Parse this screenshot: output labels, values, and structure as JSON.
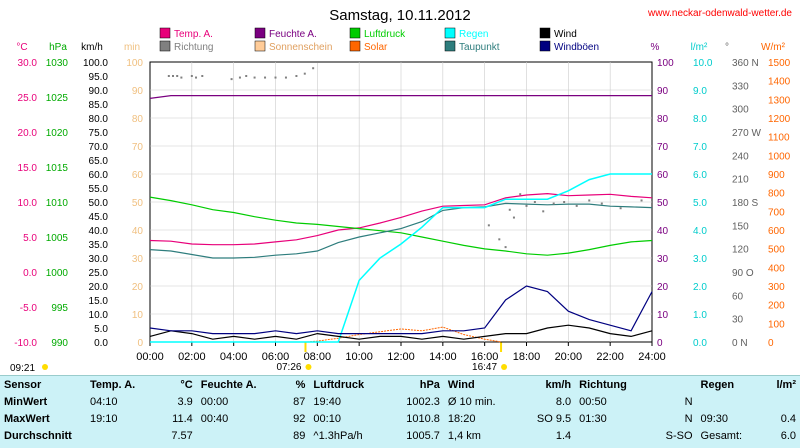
{
  "title": "Samstag, 10.11.2012",
  "site": "www.neckar-odenwald-wetter.de",
  "legend": [
    {
      "label": "Temp. A.",
      "color": "#e8007a"
    },
    {
      "label": "Feuchte A.",
      "color": "#7a0080"
    },
    {
      "label": "Luftdruck",
      "color": "#00cc00"
    },
    {
      "label": "Regen",
      "color": "#00ffff"
    },
    {
      "label": "Wind",
      "color": "#000000"
    },
    {
      "label": "Richtung",
      "color": "#808080"
    },
    {
      "label": "Sonnenschein",
      "color": "#ffcc99"
    },
    {
      "label": "Solar",
      "color": "#ff6600"
    },
    {
      "label": "Taupunkt",
      "color": "#2e7d7d"
    },
    {
      "label": "Windböen",
      "color": "#000080"
    }
  ],
  "axis_units": {
    "temp": "°C",
    "pressure": "hPa",
    "wind": "km/h",
    "sun": "min",
    "humidity": "%",
    "rain": "l/m²",
    "direction": "°",
    "solar": "W/m²"
  },
  "axis_ticks": {
    "temp": [
      "30.0",
      "25.0",
      "20.0",
      "15.0",
      "10.0",
      "5.0",
      "0.0",
      "-5.0",
      "-10.0"
    ],
    "pressure": [
      "1030",
      "1025",
      "1020",
      "1015",
      "1010",
      "1005",
      "1000",
      "995",
      "990"
    ],
    "wind": [
      "100.0",
      "95.0",
      "90.0",
      "85.0",
      "80.0",
      "75.0",
      "70.0",
      "65.0",
      "60.0",
      "55.0",
      "50.0",
      "45.0",
      "40.0",
      "35.0",
      "30.0",
      "25.0",
      "20.0",
      "15.0",
      "10.0",
      "5.0",
      "0.0"
    ],
    "sun": [
      "100",
      "90",
      "80",
      "70",
      "60",
      "50",
      "40",
      "30",
      "20",
      "10",
      "0"
    ],
    "humidity": [
      "100",
      "90",
      "80",
      "70",
      "60",
      "50",
      "40",
      "30",
      "20",
      "10",
      "0"
    ],
    "rain": [
      "10.0",
      "9.0",
      "8.0",
      "7.0",
      "6.0",
      "5.0",
      "4.0",
      "3.0",
      "2.0",
      "1.0",
      "0.0"
    ],
    "direction": [
      "360 N",
      "330",
      "300",
      "270 W",
      "240",
      "210",
      "180 S",
      "150",
      "120",
      "90 O",
      "60",
      "30",
      "0 N"
    ],
    "solar": [
      "1500",
      "1400",
      "1300",
      "1200",
      "1100",
      "1000",
      "900",
      "800",
      "700",
      "600",
      "500",
      "400",
      "300",
      "200",
      "100",
      "0"
    ],
    "time": [
      "00:00",
      "02:00",
      "04:00",
      "06:00",
      "08:00",
      "10:00",
      "12:00",
      "14:00",
      "16:00",
      "18:00",
      "20:00",
      "22:00",
      "24:00"
    ]
  },
  "sun_events": {
    "sunrise": "07:26",
    "sunset": "16:47",
    "daylight": "09:21"
  },
  "chart_data": {
    "type": "line",
    "title": "Samstag, 10.11.2012",
    "x_unit": "hours",
    "x": [
      0,
      1,
      2,
      3,
      4,
      5,
      6,
      7,
      8,
      9,
      10,
      11,
      12,
      13,
      14,
      15,
      16,
      17,
      18,
      19,
      20,
      21,
      22,
      23,
      24
    ],
    "series": [
      {
        "name": "Temp. A.",
        "axis": "temp",
        "ylim": [
          -10,
          30
        ],
        "values": [
          4.5,
          4.4,
          4.0,
          3.9,
          3.9,
          4.0,
          4.3,
          4.6,
          5.2,
          6.0,
          6.3,
          7.0,
          7.8,
          8.7,
          9.4,
          9.5,
          9.6,
          10.6,
          11.0,
          11.2,
          10.9,
          11.0,
          11.1,
          10.8,
          10.6
        ]
      },
      {
        "name": "Feuchte A.",
        "axis": "humidity",
        "ylim": [
          0,
          100
        ],
        "values": [
          87,
          88,
          88,
          88,
          88,
          88,
          88,
          88,
          88,
          88,
          88,
          88,
          88,
          88,
          88,
          88,
          88,
          88,
          88,
          88,
          88,
          88,
          88,
          88,
          88
        ]
      },
      {
        "name": "Luftdruck",
        "axis": "pressure",
        "ylim": [
          990,
          1030
        ],
        "values": [
          1010.7,
          1010.2,
          1009.6,
          1008.9,
          1008.5,
          1007.9,
          1007.4,
          1007.0,
          1006.8,
          1006.5,
          1006.2,
          1005.9,
          1005.6,
          1005.0,
          1004.4,
          1003.8,
          1003.3,
          1003.0,
          1002.6,
          1002.4,
          1002.7,
          1003.2,
          1003.8,
          1004.3,
          1004.5
        ]
      },
      {
        "name": "Taupunkt",
        "axis": "temp",
        "ylim": [
          -10,
          30
        ],
        "values": [
          3.2,
          3.0,
          2.5,
          2.0,
          2.0,
          2.1,
          2.4,
          2.6,
          3.0,
          4.2,
          5.0,
          5.6,
          6.2,
          7.2,
          8.8,
          9.2,
          9.3,
          9.8,
          9.7,
          9.6,
          9.7,
          9.7,
          9.4,
          9.3,
          9.2
        ]
      },
      {
        "name": "Regen",
        "axis": "rain",
        "ylim": [
          0,
          10
        ],
        "values": [
          0,
          0,
          0,
          0,
          0,
          0,
          0,
          0,
          0,
          0,
          2.2,
          3.0,
          3.5,
          4.1,
          4.8,
          4.8,
          4.8,
          5.1,
          5.1,
          5.1,
          5.4,
          5.8,
          6.0,
          6.0,
          6.0
        ]
      },
      {
        "name": "Wind",
        "axis": "wind",
        "ylim": [
          0,
          100
        ],
        "values": [
          2,
          4,
          3,
          1,
          2,
          1,
          2,
          1,
          3,
          2,
          1,
          2,
          2,
          1,
          2,
          1,
          2,
          3,
          3,
          5,
          6,
          5,
          3,
          2,
          4
        ]
      },
      {
        "name": "Windböen",
        "axis": "wind",
        "ylim": [
          0,
          100
        ],
        "values": [
          5,
          4,
          4,
          3,
          3,
          3,
          4,
          3,
          4,
          3,
          3,
          3,
          3,
          3,
          4,
          4,
          5,
          15,
          20,
          18,
          11,
          8,
          6,
          4,
          18
        ]
      }
    ],
    "scatter_series": [
      {
        "name": "Richtung",
        "axis": "direction",
        "ylim": [
          0,
          360
        ],
        "x": [
          0.9,
          1.1,
          1.3,
          1.5,
          2.0,
          2.2,
          2.5,
          3.9,
          4.3,
          4.6,
          5.0,
          5.5,
          6.0,
          6.5,
          7.0,
          7.4,
          7.8,
          8.0,
          16.2,
          16.7,
          17.0,
          17.2,
          17.4,
          17.7,
          18.0,
          18.4,
          18.8,
          19.3,
          19.8,
          20.4,
          21.0,
          21.6,
          22.5,
          23.5
        ],
        "y": [
          342,
          342,
          342,
          340,
          342,
          340,
          342,
          338,
          340,
          342,
          340,
          340,
          340,
          340,
          342,
          345,
          352,
          360,
          150,
          132,
          122,
          170,
          160,
          190,
          175,
          180,
          168,
          178,
          180,
          175,
          182,
          178,
          172,
          182
        ]
      },
      {
        "name": "Sonnenschein",
        "axis": "sun",
        "ylim": [
          0,
          100
        ],
        "x": [],
        "y": []
      }
    ],
    "solar_series": {
      "name": "Solar",
      "axis": "solar",
      "ylim": [
        0,
        1500
      ],
      "x": [
        7.5,
        8,
        9,
        10,
        11,
        12,
        13,
        14,
        15,
        16,
        16.8
      ],
      "y": [
        0,
        5,
        20,
        40,
        55,
        70,
        60,
        80,
        40,
        15,
        0
      ]
    },
    "summary": {
      "rows": [
        "MinWert",
        "MaxWert",
        "Durchschnitt"
      ]
    }
  },
  "stats": {
    "header": [
      "Sensor",
      "Temp. A.",
      "°C",
      "Feuchte A.",
      "%",
      "Luftdruck",
      "hPa",
      "Wind",
      "km/h",
      "Richtung",
      "",
      "Regen",
      "l/m²"
    ],
    "rows": [
      [
        "MinWert",
        "04:10",
        "3.9",
        "00:00",
        "87",
        "19:40",
        "1002.3",
        "Ø 10 min.",
        "8.0",
        "00:50",
        "N",
        "",
        ""
      ],
      [
        "MaxWert",
        "19:10",
        "11.4",
        "00:40",
        "92",
        "00:10",
        "1010.8",
        "18:20",
        "SO 9.5",
        "01:30",
        "N",
        "09:30",
        "0.4"
      ],
      [
        "Durchschnitt",
        "",
        "7.57",
        "",
        "89",
        "^1.3hPa/h",
        "1005.7",
        "1,4 km",
        "1.4",
        "",
        "S-SO",
        "Gesamt:",
        "6.0"
      ]
    ]
  }
}
